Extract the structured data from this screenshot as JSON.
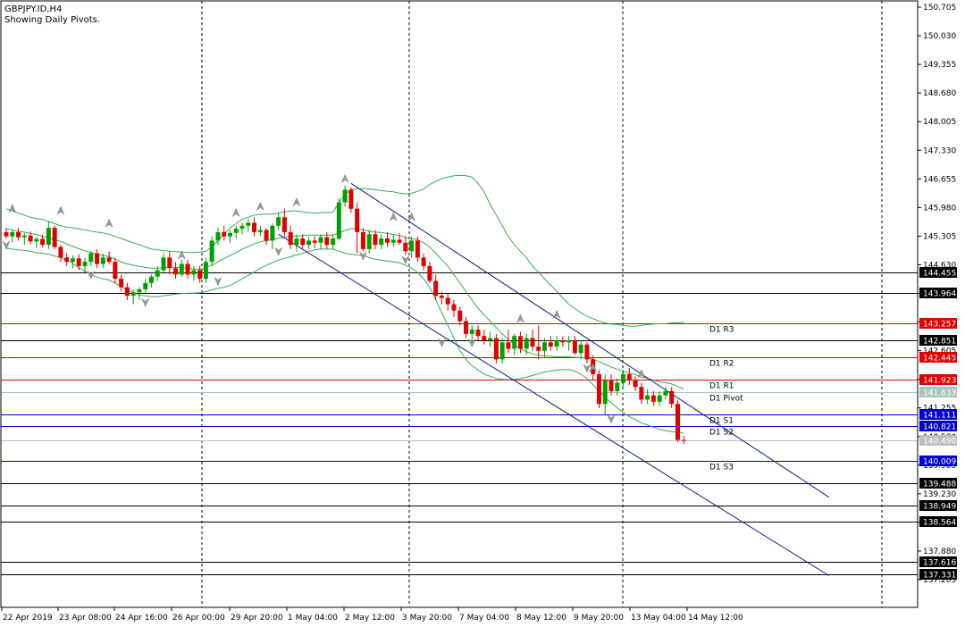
{
  "header": {
    "symbol_line": "GBPJPY.ID,H4",
    "subtitle": "Showing Daily Pivots."
  },
  "colors": {
    "bull": "#00A000",
    "bear": "#E00000",
    "bollinger": "#3BAA55",
    "channel": "#0A1A8C",
    "resistance": "#E00000",
    "support": "#0000CC",
    "level": "#000000",
    "grid": "#000000",
    "last_price_bg": "#BDBDBD",
    "pivot_bg": "#A9C5BD"
  },
  "chart_data": {
    "type": "candlestick",
    "title": "GBPJPY.ID,H4",
    "subtitle": "Showing Daily Pivots.",
    "ylim": [
      137.205,
      150.705
    ],
    "y_ticks": [
      "150.705",
      "150.030",
      "149.355",
      "148.680",
      "148.005",
      "147.330",
      "146.655",
      "145.980",
      "145.305",
      "144.630",
      "143.955",
      "143.280",
      "142.605",
      "141.930",
      "141.255",
      "140.580",
      "139.905",
      "139.230",
      "138.555",
      "137.880",
      "137.205"
    ],
    "x_ticks": [
      "22 Apr 2019",
      "23 Apr 08:00",
      "24 Apr 16:00",
      "26 Apr 00:00",
      "29 Apr 20:00",
      "1 May 04:00",
      "2 May 12:00",
      "3 May 20:00",
      "7 May 04:00",
      "8 May 12:00",
      "9 May 20:00",
      "13 May 04:00",
      "14 May 12:00"
    ],
    "grid": "vertical dashed at day separators",
    "candles": [
      [
        145.4,
        145.5,
        145.25,
        145.3
      ],
      [
        145.3,
        145.45,
        145.15,
        145.4
      ],
      [
        145.4,
        145.5,
        145.2,
        145.28
      ],
      [
        145.28,
        145.38,
        145.1,
        145.32
      ],
      [
        145.32,
        145.42,
        145.12,
        145.18
      ],
      [
        145.18,
        145.28,
        145.02,
        145.24
      ],
      [
        145.24,
        145.34,
        145.04,
        145.1
      ],
      [
        145.1,
        145.65,
        145.0,
        145.5
      ],
      [
        145.5,
        145.55,
        145.0,
        145.05
      ],
      [
        145.05,
        145.1,
        144.7,
        144.8
      ],
      [
        144.8,
        144.9,
        144.6,
        144.7
      ],
      [
        144.7,
        144.85,
        144.55,
        144.78
      ],
      [
        144.78,
        144.88,
        144.5,
        144.6
      ],
      [
        144.6,
        144.8,
        144.45,
        144.7
      ],
      [
        144.7,
        144.95,
        144.6,
        144.9
      ],
      [
        144.9,
        145.0,
        144.55,
        144.65
      ],
      [
        144.65,
        144.9,
        144.55,
        144.8
      ],
      [
        144.8,
        144.95,
        144.65,
        144.7
      ],
      [
        144.7,
        144.8,
        144.2,
        144.3
      ],
      [
        144.3,
        144.4,
        144.0,
        144.1
      ],
      [
        144.1,
        144.2,
        143.8,
        143.9
      ],
      [
        143.9,
        144.05,
        143.7,
        143.98
      ],
      [
        143.98,
        144.1,
        143.8,
        144.05
      ],
      [
        144.05,
        144.3,
        143.95,
        144.2
      ],
      [
        144.2,
        144.4,
        144.1,
        144.35
      ],
      [
        144.35,
        144.6,
        144.25,
        144.5
      ],
      [
        144.5,
        144.9,
        144.45,
        144.8
      ],
      [
        144.8,
        144.95,
        144.4,
        144.55
      ],
      [
        144.55,
        144.7,
        144.3,
        144.4
      ],
      [
        144.4,
        144.75,
        144.35,
        144.65
      ],
      [
        144.65,
        144.75,
        144.3,
        144.4
      ],
      [
        144.4,
        144.6,
        144.25,
        144.5
      ],
      [
        144.5,
        144.6,
        144.2,
        144.3
      ],
      [
        144.3,
        144.8,
        144.2,
        144.7
      ],
      [
        144.7,
        145.3,
        144.6,
        145.2
      ],
      [
        145.2,
        145.5,
        145.1,
        145.4
      ],
      [
        145.4,
        145.55,
        145.2,
        145.3
      ],
      [
        145.3,
        145.45,
        145.15,
        145.38
      ],
      [
        145.38,
        145.55,
        145.25,
        145.48
      ],
      [
        145.48,
        145.62,
        145.35,
        145.55
      ],
      [
        145.55,
        145.7,
        145.4,
        145.62
      ],
      [
        145.62,
        145.75,
        145.3,
        145.4
      ],
      [
        145.4,
        145.55,
        145.3,
        145.45
      ],
      [
        145.45,
        145.5,
        145.1,
        145.2
      ],
      [
        145.2,
        145.6,
        145.0,
        145.55
      ],
      [
        145.55,
        145.85,
        145.45,
        145.75
      ],
      [
        145.75,
        145.95,
        145.3,
        145.4
      ],
      [
        145.4,
        145.55,
        145.0,
        145.1
      ],
      [
        145.1,
        145.35,
        144.95,
        145.25
      ],
      [
        145.25,
        145.35,
        145.0,
        145.1
      ],
      [
        145.1,
        145.28,
        145.0,
        145.2
      ],
      [
        145.2,
        145.3,
        145.02,
        145.15
      ],
      [
        145.15,
        145.35,
        145.0,
        145.28
      ],
      [
        145.28,
        145.4,
        145.0,
        145.1
      ],
      [
        145.1,
        145.35,
        145.0,
        145.25
      ],
      [
        145.25,
        146.2,
        145.2,
        146.1
      ],
      [
        146.1,
        146.5,
        146.0,
        146.4
      ],
      [
        146.4,
        146.45,
        145.85,
        145.95
      ],
      [
        145.95,
        146.1,
        144.9,
        145.4
      ],
      [
        145.4,
        145.5,
        144.95,
        145.0
      ],
      [
        145.0,
        145.45,
        144.9,
        145.35
      ],
      [
        145.35,
        145.45,
        145.0,
        145.1
      ],
      [
        145.1,
        145.35,
        145.0,
        145.25
      ],
      [
        145.25,
        145.4,
        145.05,
        145.15
      ],
      [
        145.15,
        145.35,
        145.05,
        145.22
      ],
      [
        145.22,
        145.38,
        145.1,
        145.15
      ],
      [
        145.15,
        145.3,
        144.85,
        144.95
      ],
      [
        144.95,
        145.3,
        144.8,
        145.2
      ],
      [
        145.2,
        145.3,
        144.7,
        144.8
      ],
      [
        144.8,
        144.9,
        144.5,
        144.6
      ],
      [
        144.6,
        144.7,
        144.2,
        144.25
      ],
      [
        144.25,
        144.4,
        143.8,
        143.9
      ],
      [
        143.9,
        144.0,
        143.7,
        143.85
      ],
      [
        143.85,
        143.95,
        143.55,
        143.7
      ],
      [
        143.7,
        143.8,
        143.4,
        143.55
      ],
      [
        143.55,
        143.65,
        143.2,
        143.3
      ],
      [
        143.3,
        143.4,
        142.9,
        143.0
      ],
      [
        143.0,
        143.2,
        142.8,
        143.1
      ],
      [
        143.1,
        143.2,
        142.85,
        142.95
      ],
      [
        142.95,
        143.1,
        142.75,
        142.85
      ],
      [
        142.85,
        143.05,
        142.7,
        142.9
      ],
      [
        142.9,
        143.0,
        142.3,
        142.4
      ],
      [
        142.4,
        142.9,
        142.3,
        142.8
      ],
      [
        142.8,
        143.1,
        142.55,
        142.65
      ],
      [
        142.65,
        143.0,
        142.5,
        142.95
      ],
      [
        142.95,
        143.05,
        142.55,
        142.65
      ],
      [
        142.65,
        143.0,
        142.5,
        142.9
      ],
      [
        142.9,
        143.1,
        142.6,
        142.7
      ],
      [
        142.7,
        143.2,
        142.4,
        142.6
      ],
      [
        142.6,
        142.9,
        142.45,
        142.8
      ],
      [
        142.8,
        142.95,
        142.6,
        142.7
      ],
      [
        142.7,
        142.95,
        142.6,
        142.85
      ],
      [
        142.85,
        142.95,
        142.7,
        142.8
      ],
      [
        142.8,
        142.95,
        142.6,
        142.85
      ],
      [
        142.85,
        142.95,
        142.5,
        142.55
      ],
      [
        142.55,
        142.85,
        142.4,
        142.75
      ],
      [
        142.75,
        142.8,
        142.3,
        142.4
      ],
      [
        142.4,
        142.5,
        141.9,
        142.05
      ],
      [
        142.05,
        142.15,
        141.25,
        141.35
      ],
      [
        141.35,
        142.05,
        141.1,
        141.9
      ],
      [
        141.9,
        142.05,
        141.55,
        141.65
      ],
      [
        141.65,
        141.95,
        141.55,
        141.85
      ],
      [
        141.85,
        142.15,
        141.75,
        142.05
      ],
      [
        142.05,
        142.2,
        141.8,
        141.9
      ],
      [
        141.9,
        142.0,
        141.65,
        141.75
      ],
      [
        141.75,
        141.85,
        141.35,
        141.45
      ],
      [
        141.45,
        141.7,
        141.35,
        141.55
      ],
      [
        141.55,
        141.65,
        141.3,
        141.4
      ],
      [
        141.4,
        141.65,
        141.3,
        141.55
      ],
      [
        141.55,
        141.75,
        141.45,
        141.65
      ],
      [
        141.65,
        141.75,
        141.25,
        141.35
      ],
      [
        141.35,
        141.45,
        140.45,
        140.5
      ],
      [
        140.5,
        140.6,
        140.4,
        140.49
      ]
    ],
    "series": [
      {
        "name": "",
        "upper": [
          145.95,
          145.9,
          145.85,
          145.8,
          145.75,
          145.72,
          145.7,
          145.65,
          145.6,
          145.55,
          145.52,
          145.5,
          145.48,
          145.45,
          145.42,
          145.4,
          145.38,
          145.35,
          145.3,
          145.25,
          145.2,
          145.15,
          145.1,
          145.05,
          145.0,
          144.98,
          144.96,
          144.95,
          144.94,
          144.93,
          144.92,
          144.92,
          144.93,
          144.95,
          145.05,
          145.2,
          145.35,
          145.5,
          145.6,
          145.7,
          145.75,
          145.8,
          145.82,
          145.83,
          145.82,
          145.85,
          145.88,
          145.9,
          145.9,
          145.88,
          145.86,
          145.85,
          145.86,
          145.86,
          145.87,
          146.1,
          146.3,
          146.4,
          146.42,
          146.43,
          146.42,
          146.4,
          146.38,
          146.36,
          146.35,
          146.32,
          146.3,
          146.32,
          146.36,
          146.42,
          146.52,
          146.6,
          146.66,
          146.7,
          146.73,
          146.74,
          146.73,
          146.7,
          146.55,
          146.35,
          146.05,
          145.8,
          145.55,
          145.3,
          145.1,
          144.95,
          144.8,
          144.6,
          144.45,
          144.3,
          144.15,
          144.0,
          143.85,
          143.7,
          143.6,
          143.5,
          143.42,
          143.36,
          143.3,
          143.26,
          143.23,
          143.22,
          143.2,
          143.18,
          143.18,
          143.2,
          143.22,
          143.23,
          143.24,
          143.24,
          143.26,
          143.26,
          143.27
        ]
      },
      {
        "name": "",
        "middle": [
          145.48,
          145.45,
          145.42,
          145.4,
          145.37,
          145.34,
          145.3,
          145.27,
          145.22,
          145.18,
          145.12,
          145.06,
          145.01,
          144.96,
          144.92,
          144.88,
          144.85,
          144.82,
          144.76,
          144.7,
          144.65,
          144.62,
          144.59,
          144.57,
          144.55,
          144.55,
          144.56,
          144.57,
          144.57,
          144.56,
          144.55,
          144.53,
          144.52,
          144.56,
          144.62,
          144.7,
          144.78,
          144.85,
          144.92,
          145.0,
          145.06,
          145.12,
          145.17,
          145.2,
          145.22,
          145.26,
          145.28,
          145.3,
          145.31,
          145.32,
          145.33,
          145.33,
          145.33,
          145.33,
          145.33,
          145.38,
          145.44,
          145.48,
          145.48,
          145.45,
          145.42,
          145.4,
          145.39,
          145.37,
          145.34,
          145.32,
          145.28,
          145.25,
          145.22,
          145.15,
          145.05,
          144.9,
          144.75,
          144.6,
          144.4,
          144.2,
          144.0,
          143.8,
          143.6,
          143.45,
          143.3,
          143.15,
          143.0,
          142.87,
          142.75,
          142.65,
          142.58,
          142.53,
          142.5,
          142.48,
          142.47,
          142.46,
          142.46,
          142.46,
          142.45,
          142.44,
          142.43,
          142.4,
          142.35,
          142.28,
          142.22,
          142.17,
          142.12,
          142.08,
          142.04,
          141.98,
          141.95,
          141.91,
          141.87,
          141.85,
          141.82,
          141.76,
          141.7
        ]
      },
      {
        "name": "",
        "lower": [
          145.02,
          145.0,
          144.98,
          144.97,
          144.95,
          144.92,
          144.9,
          144.88,
          144.84,
          144.8,
          144.74,
          144.66,
          144.56,
          144.48,
          144.4,
          144.34,
          144.3,
          144.27,
          144.2,
          144.12,
          144.04,
          143.98,
          143.92,
          143.9,
          143.88,
          143.88,
          143.9,
          143.92,
          143.94,
          143.95,
          143.96,
          143.96,
          143.97,
          144.0,
          144.04,
          144.08,
          144.1,
          144.14,
          144.22,
          144.3,
          144.38,
          144.46,
          144.55,
          144.62,
          144.68,
          144.74,
          144.78,
          144.82,
          144.86,
          144.9,
          144.94,
          144.98,
          145.0,
          145.0,
          145.0,
          144.95,
          144.9,
          144.88,
          144.86,
          144.85,
          144.8,
          144.76,
          144.74,
          144.72,
          144.7,
          144.68,
          144.62,
          144.55,
          144.45,
          144.3,
          144.1,
          143.8,
          143.5,
          143.2,
          142.9,
          142.6,
          142.4,
          142.25,
          142.15,
          142.05,
          142.0,
          141.95,
          141.93,
          141.92,
          141.93,
          141.95,
          141.98,
          142.02,
          142.06,
          142.1,
          142.13,
          142.15,
          142.16,
          142.16,
          142.12,
          142.05,
          141.95,
          141.8,
          141.65,
          141.5,
          141.38,
          141.25,
          141.15,
          141.05,
          140.98,
          140.9,
          140.85,
          140.8,
          140.75,
          140.72,
          140.7,
          140.68,
          140.66
        ]
      }
    ],
    "channel_upper": {
      "from": [
        57,
        146.55
      ],
      "to": [
        136,
        139.15
      ]
    },
    "channel_lower": {
      "from": [
        45,
        145.35
      ],
      "to": [
        136,
        137.3
      ]
    },
    "fractals": [
      [
        1,
        145.95,
        "up"
      ],
      [
        0,
        145.1,
        "down"
      ],
      [
        9,
        145.9,
        "up"
      ],
      [
        14,
        144.4,
        "down"
      ],
      [
        17,
        145.6,
        "up"
      ],
      [
        23,
        143.75,
        "down"
      ],
      [
        29,
        144.85,
        "up"
      ],
      [
        35,
        144.25,
        "down"
      ],
      [
        38,
        145.85,
        "up"
      ],
      [
        42,
        146.0,
        "up"
      ],
      [
        45,
        144.95,
        "down"
      ],
      [
        48,
        146.1,
        "up"
      ],
      [
        56,
        146.65,
        "up"
      ],
      [
        59,
        144.85,
        "down"
      ],
      [
        64,
        145.75,
        "up"
      ],
      [
        66,
        144.75,
        "down"
      ],
      [
        67,
        145.75,
        "up"
      ],
      [
        72,
        142.8,
        "down"
      ],
      [
        77,
        142.8,
        "down"
      ],
      [
        85,
        143.35,
        "up"
      ],
      [
        91,
        143.45,
        "up"
      ],
      [
        96,
        142.2,
        "down"
      ],
      [
        97,
        142.2,
        "up"
      ],
      [
        100,
        141.0,
        "down"
      ],
      [
        105,
        142.05,
        "up"
      ]
    ]
  },
  "levels": [
    {
      "value": 144.455,
      "label_right": "144.455",
      "name": "",
      "kind": "level"
    },
    {
      "value": 143.964,
      "label_right": "143.964",
      "name": "",
      "kind": "level"
    },
    {
      "value": 143.257,
      "label_right": "143.257",
      "name": "D1 R3",
      "kind": "resistance"
    },
    {
      "value": 142.851,
      "label_right": "142.851",
      "name": "",
      "kind": "level"
    },
    {
      "value": 142.445,
      "label_right": "142.445",
      "name": "D1 R2",
      "kind": "resistance"
    },
    {
      "value": 141.923,
      "label_right": "141.923",
      "name": "D1 R1",
      "kind": "resistance"
    },
    {
      "value": 141.633,
      "label_right": "141.633",
      "name": "D1 Pivot",
      "kind": "pivot"
    },
    {
      "value": 141.111,
      "label_right": "141.111",
      "name": "D1 S1",
      "kind": "support"
    },
    {
      "value": 140.821,
      "label_right": "140.821",
      "name": "D1 S2",
      "kind": "support"
    },
    {
      "value": 140.49,
      "label_right": "140.490",
      "name": "",
      "kind": "last"
    },
    {
      "value": 140.009,
      "label_right": "140.009",
      "name": "D1 S3",
      "kind": "support"
    },
    {
      "value": 139.488,
      "label_right": "139.488",
      "name": "",
      "kind": "level"
    },
    {
      "value": 138.949,
      "label_right": "138.949",
      "name": "",
      "kind": "level"
    },
    {
      "value": 138.564,
      "label_right": "138.564",
      "name": "",
      "kind": "level"
    },
    {
      "value": 137.616,
      "label_right": "137.616",
      "name": "",
      "kind": "level"
    },
    {
      "value": 137.331,
      "label_right": "137.331",
      "name": "",
      "kind": "level"
    }
  ],
  "day_separators": [
    226,
    458,
    697,
    987
  ]
}
